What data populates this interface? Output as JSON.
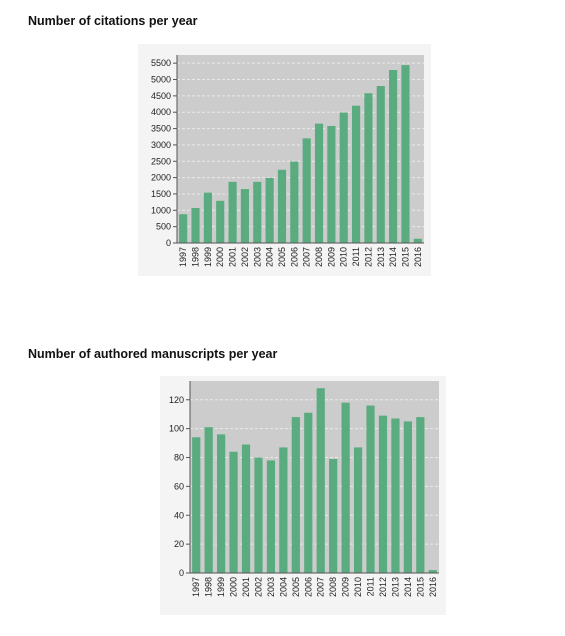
{
  "charts": [
    {
      "title": "Number of citations per year"
    },
    {
      "title": "Number of authored manuscripts per year"
    }
  ],
  "colors": {
    "bar": "#5aab7f",
    "plot_background": "#cccccc",
    "gridline": "#e9e9e9",
    "axis": "#555555"
  },
  "chart_data": [
    {
      "type": "bar",
      "title": "Number of citations per year",
      "xlabel": "",
      "ylabel": "",
      "categories": [
        "1997",
        "1998",
        "1999",
        "2000",
        "2001",
        "2002",
        "2003",
        "2004",
        "2005",
        "2006",
        "2007",
        "2008",
        "2009",
        "2010",
        "2011",
        "2012",
        "2013",
        "2014",
        "2015",
        "2016"
      ],
      "values": [
        880,
        1070,
        1540,
        1290,
        1870,
        1650,
        1870,
        1990,
        2240,
        2490,
        3200,
        3650,
        3580,
        3990,
        4200,
        4580,
        4800,
        5290,
        5440,
        130
      ],
      "ylim": [
        0,
        5750
      ],
      "yticks": [
        0,
        500,
        1000,
        1500,
        2000,
        2500,
        3000,
        3500,
        4000,
        4500,
        5000,
        5500
      ],
      "grid": true,
      "legend": "none"
    },
    {
      "type": "bar",
      "title": "Number of authored manuscripts per year",
      "xlabel": "",
      "ylabel": "",
      "categories": [
        "1997",
        "1998",
        "1999",
        "2000",
        "2001",
        "2002",
        "2003",
        "2004",
        "2005",
        "2006",
        "2007",
        "2008",
        "2009",
        "2010",
        "2011",
        "2012",
        "2013",
        "2014",
        "2015",
        "2016"
      ],
      "values": [
        94,
        101,
        96,
        84,
        89,
        80,
        78,
        87,
        108,
        111,
        128,
        79,
        118,
        87,
        116,
        109,
        107,
        105,
        108,
        2
      ],
      "ylim": [
        0,
        133
      ],
      "yticks": [
        0,
        20,
        40,
        60,
        80,
        100,
        120
      ],
      "grid": true,
      "legend": "none"
    }
  ]
}
